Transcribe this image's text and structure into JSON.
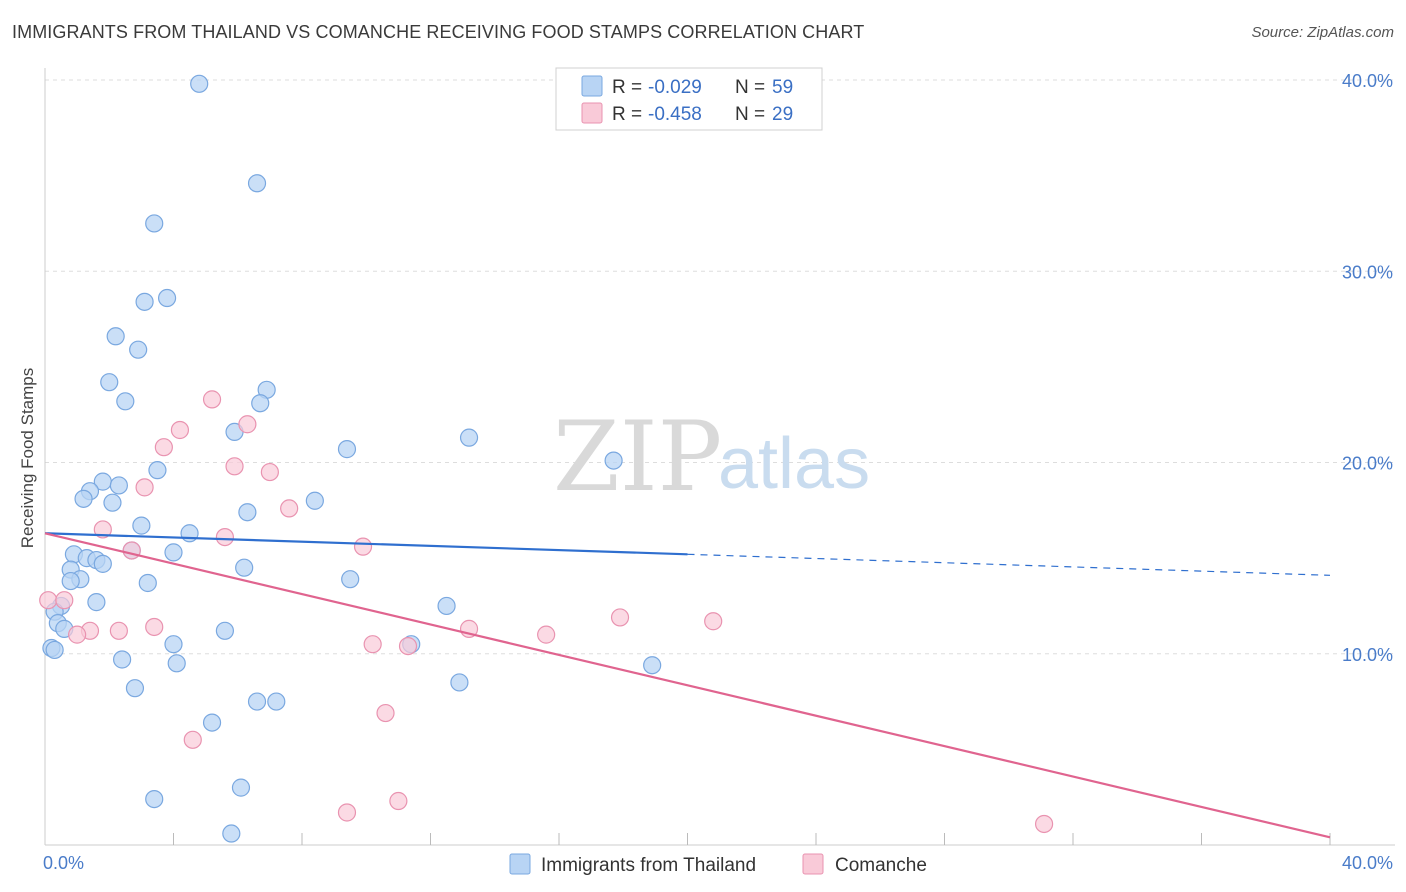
{
  "header": {
    "title": "IMMIGRANTS FROM THAILAND VS COMANCHE RECEIVING FOOD STAMPS CORRELATION CHART",
    "source": "Source: ZipAtlas.com"
  },
  "watermark": {
    "zip": "ZIP",
    "atlas": "atlas"
  },
  "legend": {
    "rows": [
      {
        "r_label": "R =",
        "r_value": "-0.029",
        "n_label": "N =",
        "n_value": "59"
      },
      {
        "r_label": "R =",
        "r_value": "-0.458",
        "n_label": "N =",
        "n_value": "29"
      }
    ]
  },
  "bottom_legend": {
    "items": [
      {
        "label": "Immigrants from Thailand"
      },
      {
        "label": "Comanche"
      }
    ]
  },
  "colors": {
    "blue_fill": "#b8d4f4",
    "blue_stroke": "#7aa8e0",
    "blue_line": "#2f6fcf",
    "pink_fill": "#f9cad8",
    "pink_stroke": "#e993b0",
    "pink_line": "#e0648f",
    "grid": "#dddddd",
    "tick_text": "#4a7cc9"
  },
  "chart_data": {
    "type": "scatter",
    "title": "IMMIGRANTS FROM THAILAND VS COMANCHE RECEIVING FOOD STAMPS CORRELATION CHART",
    "xlabel": "",
    "ylabel": "Receiving Food Stamps",
    "xlim": [
      0,
      40
    ],
    "ylim": [
      0,
      40
    ],
    "x_tick_labels": [
      "0.0%",
      "40.0%"
    ],
    "y_ticks": [
      10,
      20,
      30,
      40
    ],
    "y_tick_labels": [
      "10.0%",
      "20.0%",
      "30.0%",
      "40.0%"
    ],
    "grid": true,
    "legend_position": "top-center",
    "series": [
      {
        "name": "Immigrants from Thailand",
        "r": -0.029,
        "n": 59,
        "trend": {
          "x0": 0,
          "y0": 16.3,
          "x1": 20,
          "y1": 15.2,
          "dash_to_x": 40,
          "dash_to_y": 14.1
        },
        "points": [
          [
            4.8,
            39.8
          ],
          [
            6.6,
            34.6
          ],
          [
            3.4,
            32.5
          ],
          [
            3.8,
            28.6
          ],
          [
            3.1,
            28.4
          ],
          [
            2.2,
            26.6
          ],
          [
            2.9,
            25.9
          ],
          [
            2.0,
            24.2
          ],
          [
            6.9,
            23.8
          ],
          [
            2.5,
            23.2
          ],
          [
            6.7,
            23.1
          ],
          [
            5.9,
            21.6
          ],
          [
            13.2,
            21.3
          ],
          [
            9.4,
            20.7
          ],
          [
            17.7,
            20.1
          ],
          [
            3.5,
            19.6
          ],
          [
            1.8,
            19.0
          ],
          [
            2.3,
            18.8
          ],
          [
            1.4,
            18.5
          ],
          [
            1.2,
            18.1
          ],
          [
            8.4,
            18.0
          ],
          [
            2.1,
            17.9
          ],
          [
            6.3,
            17.4
          ],
          [
            3.0,
            16.7
          ],
          [
            4.5,
            16.3
          ],
          [
            2.7,
            15.4
          ],
          [
            4.0,
            15.3
          ],
          [
            0.9,
            15.2
          ],
          [
            1.3,
            15.0
          ],
          [
            1.6,
            14.9
          ],
          [
            1.8,
            14.7
          ],
          [
            0.8,
            14.4
          ],
          [
            6.2,
            14.5
          ],
          [
            1.1,
            13.9
          ],
          [
            0.8,
            13.8
          ],
          [
            3.2,
            13.7
          ],
          [
            9.5,
            13.9
          ],
          [
            1.6,
            12.7
          ],
          [
            0.5,
            12.5
          ],
          [
            12.5,
            12.5
          ],
          [
            0.3,
            12.2
          ],
          [
            0.4,
            11.6
          ],
          [
            0.6,
            11.3
          ],
          [
            5.6,
            11.2
          ],
          [
            11.4,
            10.5
          ],
          [
            4.0,
            10.5
          ],
          [
            0.2,
            10.3
          ],
          [
            0.3,
            10.2
          ],
          [
            2.4,
            9.7
          ],
          [
            4.1,
            9.5
          ],
          [
            18.9,
            9.4
          ],
          [
            12.9,
            8.5
          ],
          [
            2.8,
            8.2
          ],
          [
            6.6,
            7.5
          ],
          [
            7.2,
            7.5
          ],
          [
            5.2,
            6.4
          ],
          [
            6.1,
            3.0
          ],
          [
            3.4,
            2.4
          ],
          [
            5.8,
            0.6
          ]
        ]
      },
      {
        "name": "Comanche",
        "r": -0.458,
        "n": 29,
        "trend": {
          "x0": 0,
          "y0": 16.3,
          "x1": 40,
          "y1": 0.4
        },
        "points": [
          [
            5.2,
            23.3
          ],
          [
            6.3,
            22.0
          ],
          [
            4.2,
            21.7
          ],
          [
            3.7,
            20.8
          ],
          [
            5.9,
            19.8
          ],
          [
            7.0,
            19.5
          ],
          [
            3.1,
            18.7
          ],
          [
            7.6,
            17.6
          ],
          [
            1.8,
            16.5
          ],
          [
            5.6,
            16.1
          ],
          [
            9.9,
            15.6
          ],
          [
            2.7,
            15.4
          ],
          [
            0.1,
            12.8
          ],
          [
            0.6,
            12.8
          ],
          [
            17.9,
            11.9
          ],
          [
            20.8,
            11.7
          ],
          [
            3.4,
            11.4
          ],
          [
            13.2,
            11.3
          ],
          [
            1.4,
            11.2
          ],
          [
            2.3,
            11.2
          ],
          [
            1.0,
            11.0
          ],
          [
            15.6,
            11.0
          ],
          [
            10.2,
            10.5
          ],
          [
            11.3,
            10.4
          ],
          [
            10.6,
            6.9
          ],
          [
            4.6,
            5.5
          ],
          [
            11.0,
            2.3
          ],
          [
            9.4,
            1.7
          ],
          [
            31.1,
            1.1
          ]
        ]
      }
    ]
  }
}
